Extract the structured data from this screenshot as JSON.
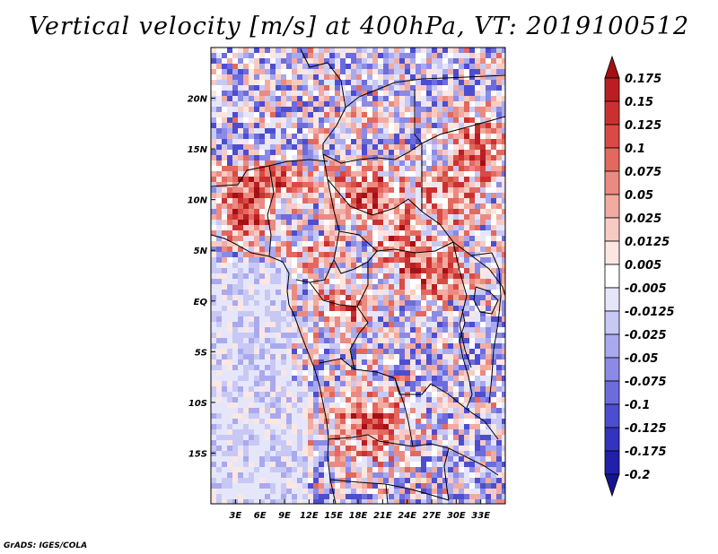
{
  "title": "Vertical velocity [m/s] at 400hPa, VT: 2019100512",
  "credit": "GrADS: IGES/COLA",
  "map": {
    "lon_range": [
      0,
      36
    ],
    "lat_range": [
      -20,
      25
    ],
    "x_ticks": [
      "3E",
      "6E",
      "9E",
      "12E",
      "15E",
      "18E",
      "21E",
      "24E",
      "27E",
      "30E",
      "33E"
    ],
    "x_tick_values": [
      3,
      6,
      9,
      12,
      15,
      18,
      21,
      24,
      27,
      30,
      33
    ],
    "y_ticks": [
      "20N",
      "15N",
      "10N",
      "5N",
      "EQ",
      "5S",
      "10S",
      "15S"
    ],
    "y_tick_values": [
      20,
      15,
      10,
      5,
      0,
      -5,
      -10,
      -15
    ]
  },
  "colorbar": {
    "labels": [
      "0.175",
      "0.15",
      "0.125",
      "0.1",
      "0.075",
      "0.05",
      "0.025",
      "0.0125",
      "0.005",
      "-0.005",
      "-0.0125",
      "-0.025",
      "-0.05",
      "-0.075",
      "-0.1",
      "-0.125",
      "-0.175",
      "-0.2"
    ],
    "colors": [
      "#a50f15",
      "#bb1e22",
      "#cb3031",
      "#da4a44",
      "#e3685f",
      "#eb8a80",
      "#f2aba1",
      "#f7cbc3",
      "#fbe6e1",
      "#ffffff",
      "#e6e6fb",
      "#c8c8f5",
      "#a9a9ee",
      "#8b8be5",
      "#6c6cdc",
      "#4d4dcf",
      "#3333bf",
      "#2020a8",
      "#16168c"
    ]
  }
}
